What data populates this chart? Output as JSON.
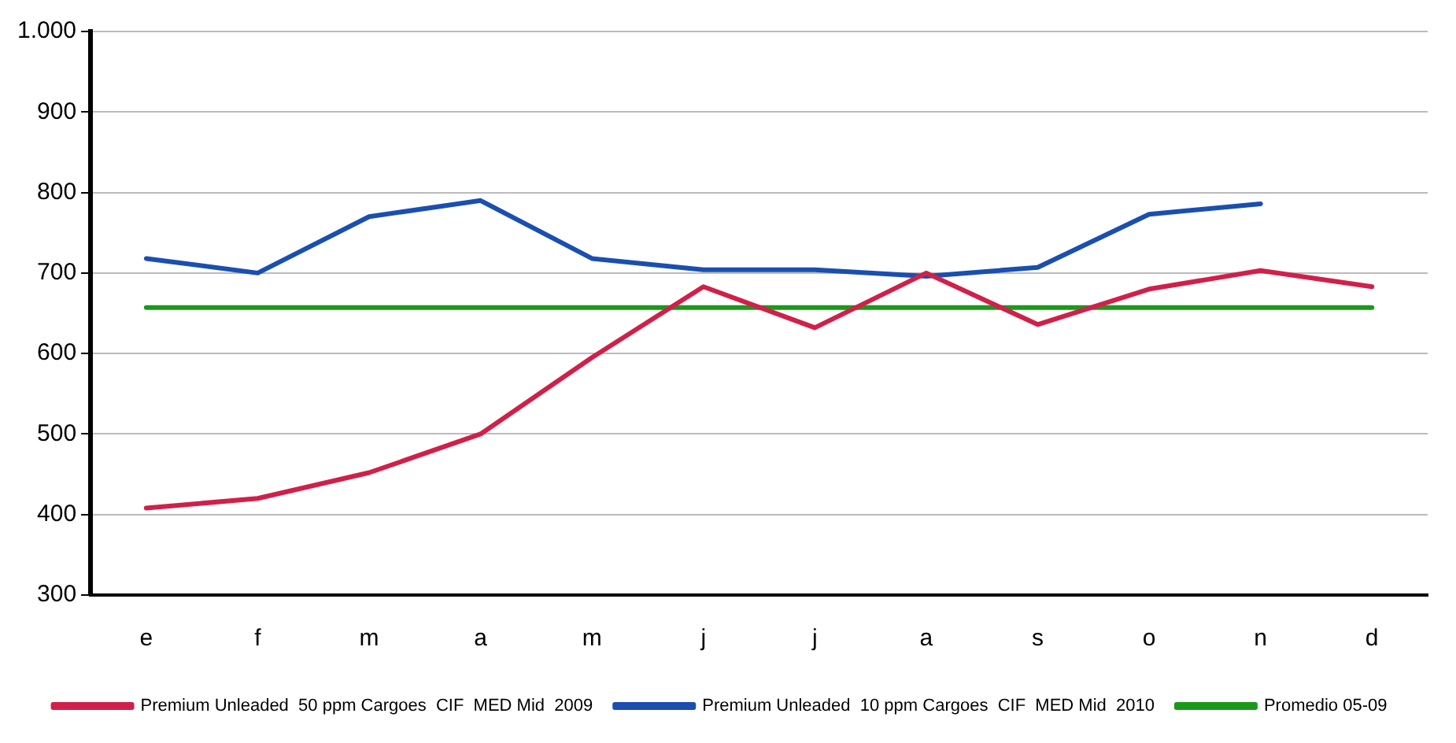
{
  "chart_data": {
    "type": "line",
    "categories": [
      "e",
      "f",
      "m",
      "a",
      "m",
      "j",
      "j",
      "a",
      "s",
      "o",
      "n",
      "d"
    ],
    "series": [
      {
        "name": "Premium Unleaded  50 ppm Cargoes  CIF  MED Mid  2009",
        "color": "#d0204a",
        "values": [
          408,
          420,
          452,
          500,
          595,
          683,
          632,
          700,
          636,
          680,
          703,
          683
        ]
      },
      {
        "name": "Premium Unleaded  10 ppm Cargoes  CIF  MED Mid  2010",
        "color": "#1a4fb0",
        "values": [
          718,
          700,
          770,
          790,
          718,
          704,
          704,
          696,
          707,
          773,
          786,
          null
        ]
      },
      {
        "name": "Promedio 05-09",
        "color": "#1a9a1a",
        "values": [
          657,
          657,
          657,
          657,
          657,
          657,
          657,
          657,
          657,
          657,
          657,
          657
        ]
      }
    ],
    "ylim": [
      300,
      1000
    ],
    "yticks": [
      300,
      400,
      500,
      600,
      700,
      800,
      900,
      {
        "value": 1000,
        "label": "1.000"
      }
    ],
    "grid": "y",
    "legend": "bottom",
    "marker": "none",
    "line_style": "solid"
  }
}
